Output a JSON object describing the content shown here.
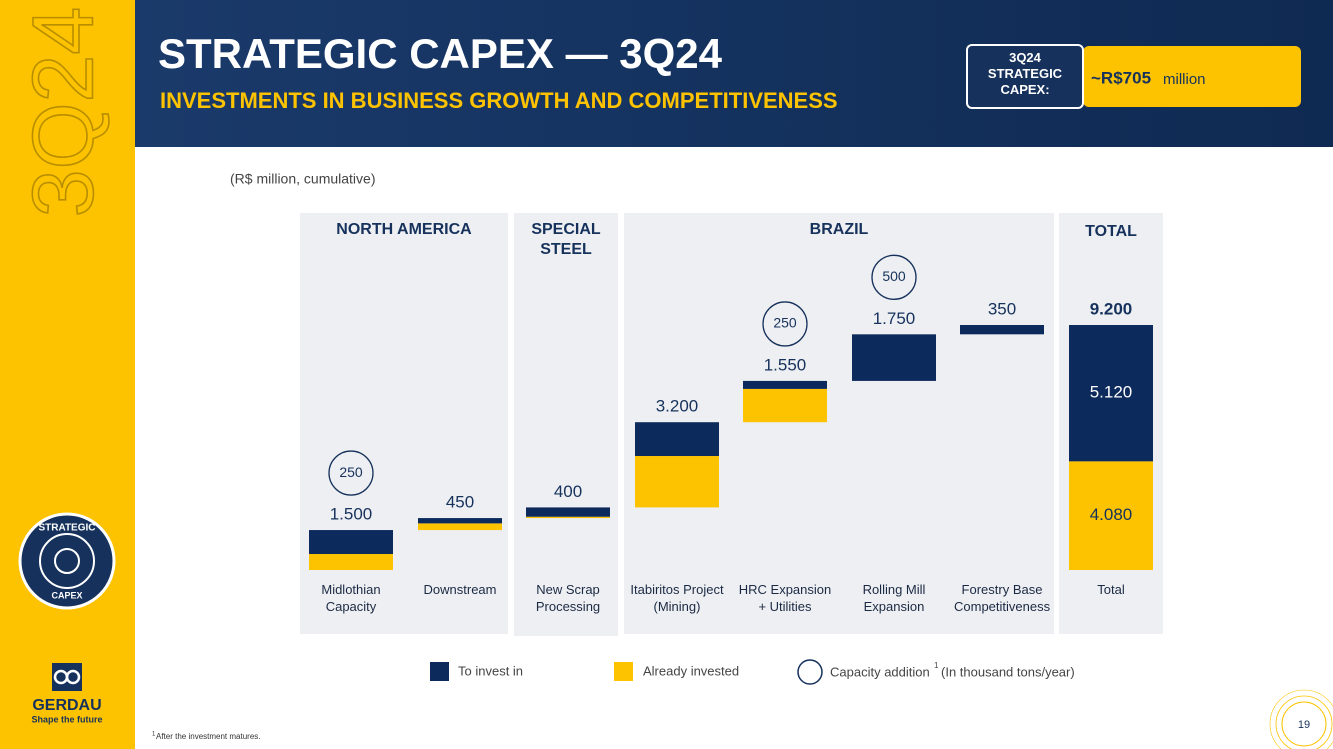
{
  "slide": {
    "sidebar_label": "3Q24",
    "badge_top": "STRATEGIC",
    "badge_bottom": "CAPEX",
    "logo_name": "GERDAU",
    "logo_tagline": "Shape the future",
    "title": "STRATEGIC CAPEX — 3Q24",
    "subtitle": "INVESTMENTS IN BUSINESS GROWTH AND COMPETITIVENESS",
    "kpi_label": "3Q24 STRATEGIC CAPEX:",
    "kpi_value": "~R$705",
    "kpi_unit": "million",
    "footnote_marker": "1",
    "footnote": "After the investment matures.",
    "page_number": "19"
  },
  "chart_data": {
    "type": "waterfall",
    "subtitle": "(R$ million, cumulative)",
    "groups": [
      "NORTH AMERICA",
      "SPECIAL STEEL",
      "BRAZIL",
      "TOTAL"
    ],
    "categories": [
      "Midlothian Capacity",
      "Downstream",
      "New Scrap Processing",
      "Itabiritos Project (Mining)",
      "HRC Expansion + Utilities",
      "Rolling Mill Expansion",
      "Forestry Base Competitiveness",
      "Total"
    ],
    "series": [
      {
        "name": "To invest in",
        "color": "#0d2a5c",
        "values": [
          900,
          200,
          350,
          1270,
          300,
          1750,
          350,
          5120
        ],
        "value_labels": [
          null,
          null,
          null,
          null,
          null,
          null,
          null,
          "5.120"
        ]
      },
      {
        "name": "Already invested",
        "color": "#fdc300",
        "values": [
          600,
          250,
          50,
          1930,
          1250,
          0,
          0,
          4080
        ],
        "value_labels": [
          null,
          null,
          null,
          null,
          null,
          null,
          null,
          "4.080"
        ]
      }
    ],
    "totals": [
      1500,
      450,
      400,
      3200,
      1550,
      1750,
      350,
      9200
    ],
    "total_labels": [
      "1.500",
      "450",
      "400",
      "3.200",
      "1.550",
      "1.750",
      "350",
      "9.200"
    ],
    "capacity": {
      "name": "Capacity addition",
      "marker": "1",
      "unit": "(In thousand tons/year)",
      "values": [
        250,
        null,
        null,
        null,
        250,
        500,
        null,
        null
      ]
    }
  }
}
